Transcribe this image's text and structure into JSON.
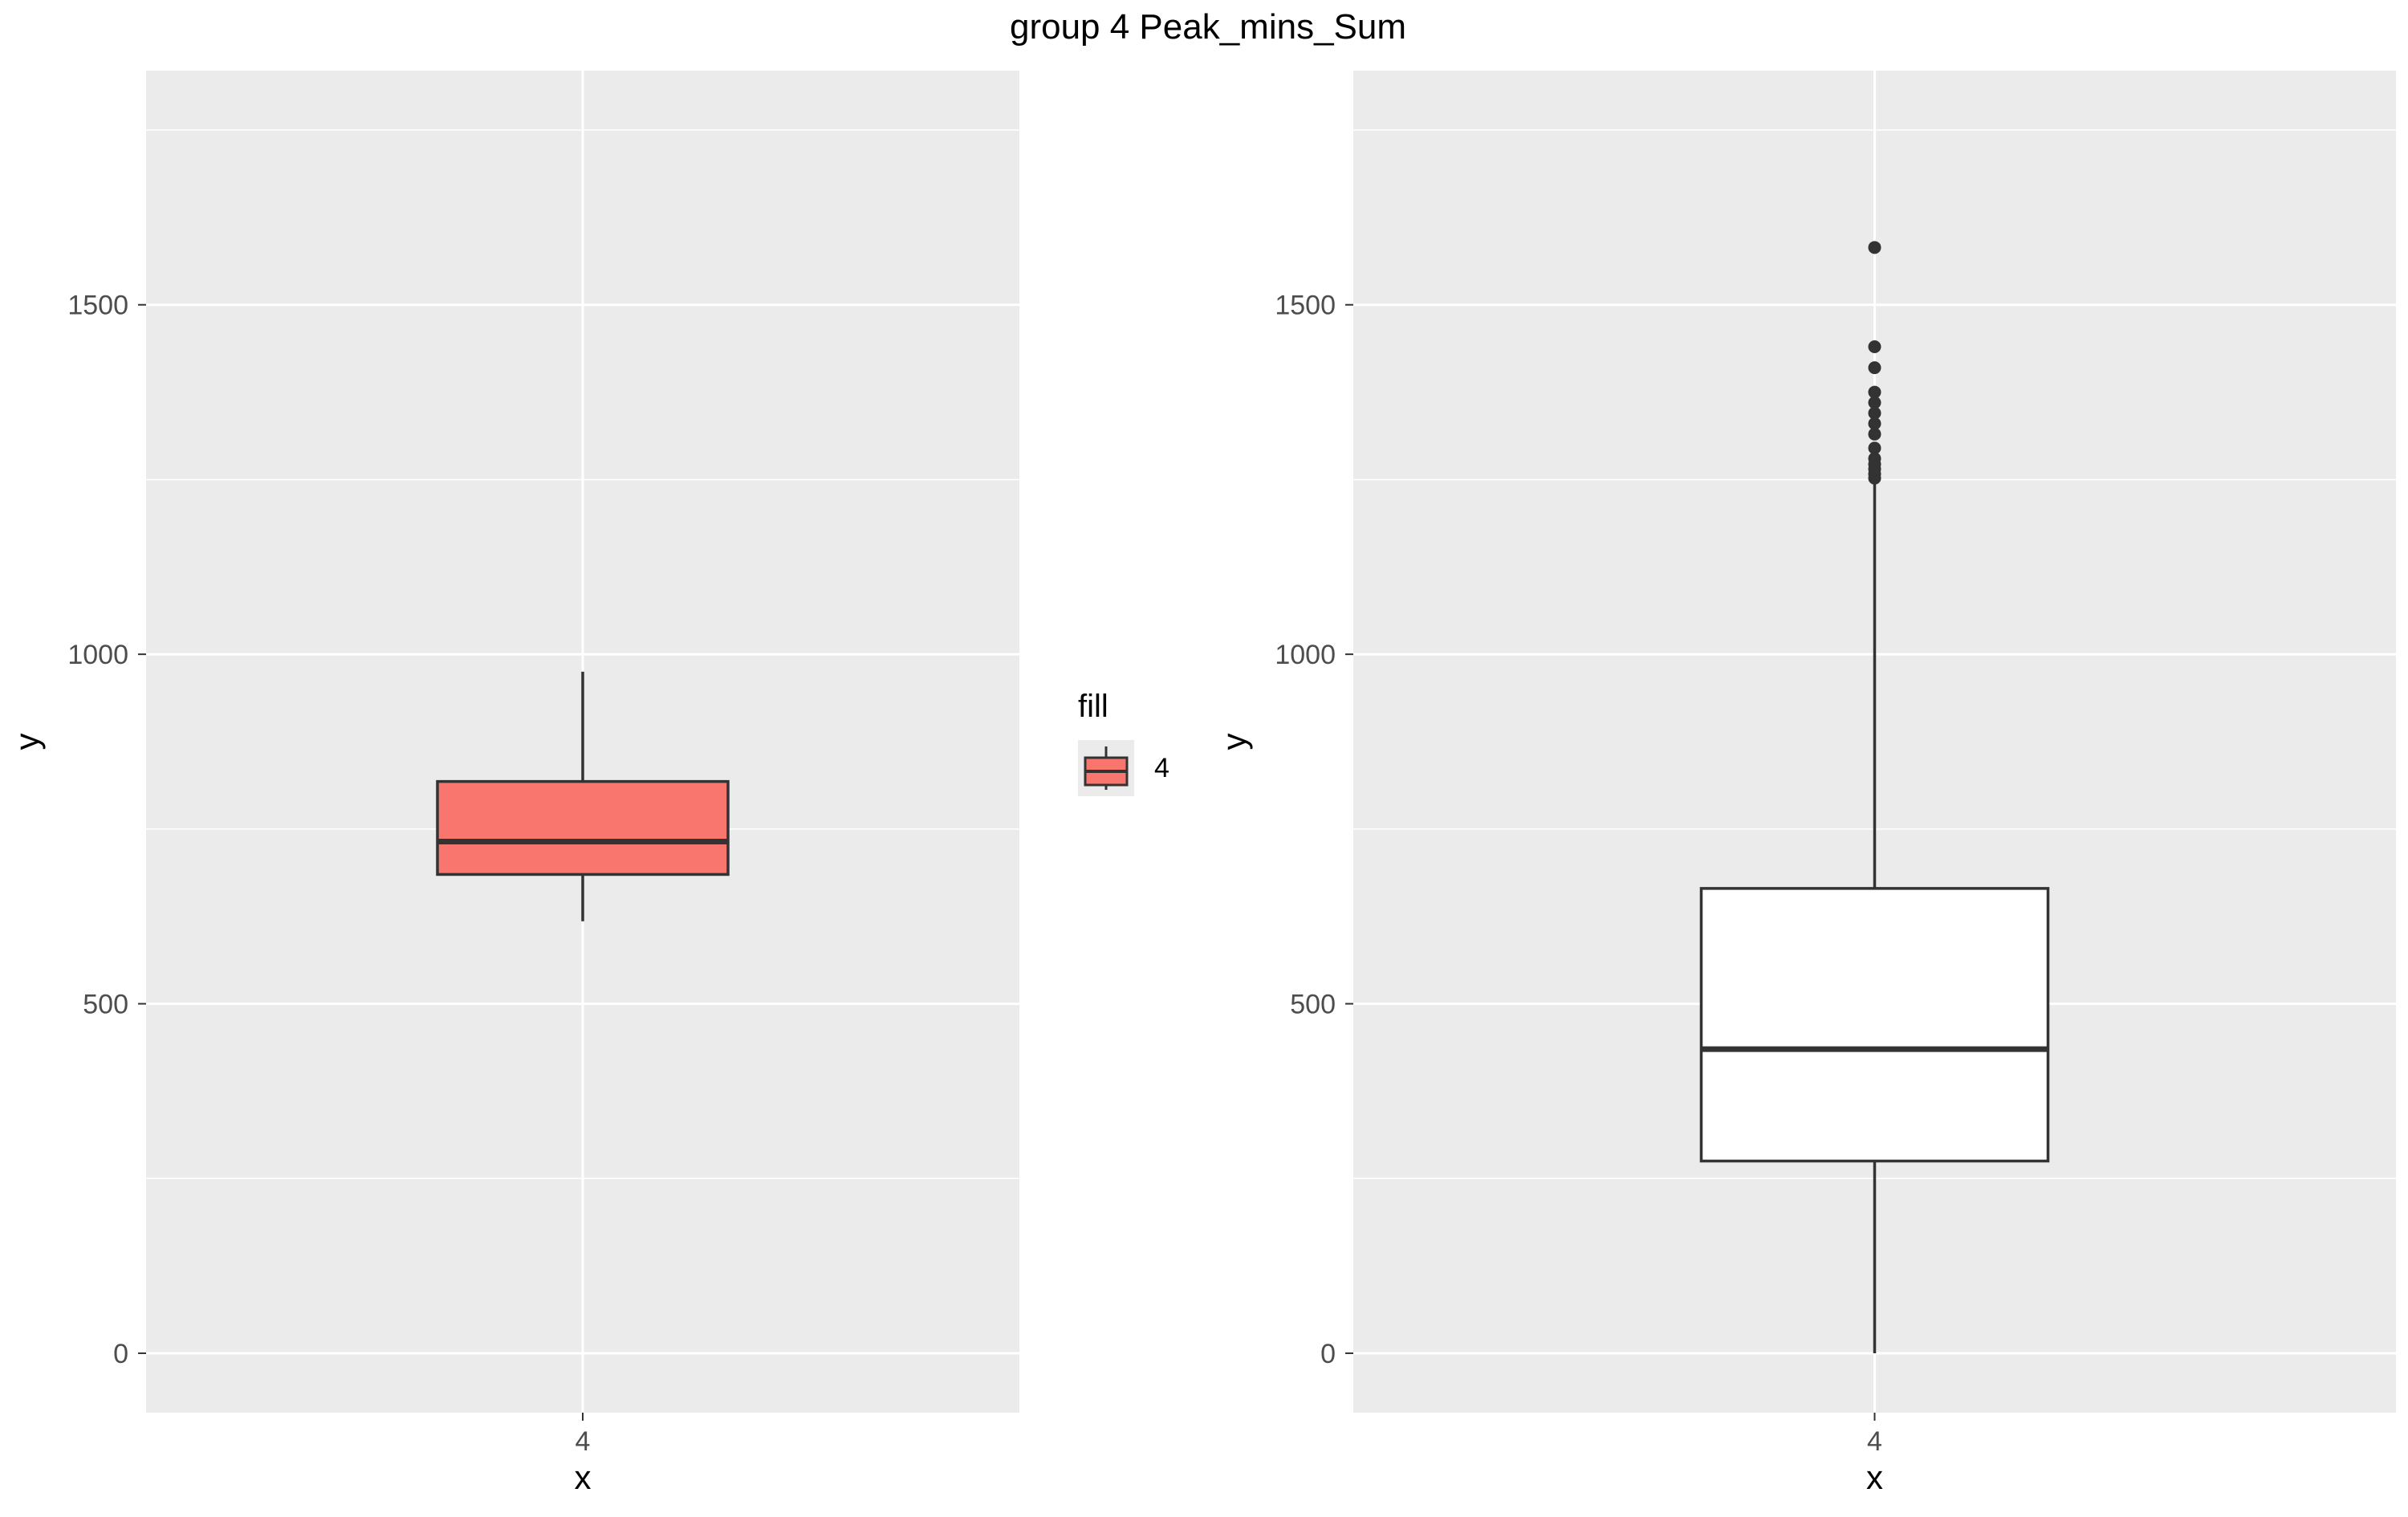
{
  "title": "group 4 Peak_mins_Sum",
  "legend": {
    "title": "fill",
    "label": "4",
    "color": "#F8766D"
  },
  "chart_data": [
    {
      "type": "box",
      "xlabel": "x",
      "ylabel": "y",
      "categories": [
        "4"
      ],
      "yticks": [
        0,
        500,
        1000,
        1500
      ],
      "ylim": [
        -85,
        1835
      ],
      "fill": "#F8766D",
      "grid": true,
      "boxes": [
        {
          "category": "4",
          "min": 618,
          "q1": 685,
          "median": 732,
          "q3": 818,
          "max": 975,
          "outliers": []
        }
      ]
    },
    {
      "type": "box",
      "xlabel": "x",
      "ylabel": "y",
      "categories": [
        "4"
      ],
      "yticks": [
        0,
        500,
        1000,
        1500
      ],
      "ylim": [
        -85,
        1835
      ],
      "fill": "#FFFFFF",
      "grid": true,
      "boxes": [
        {
          "category": "4",
          "min": 0,
          "q1": 275,
          "median": 435,
          "q3": 665,
          "max": 1245,
          "outliers": [
            1252,
            1258,
            1265,
            1272,
            1280,
            1295,
            1315,
            1330,
            1345,
            1360,
            1375,
            1410,
            1440,
            1582
          ]
        }
      ]
    }
  ]
}
